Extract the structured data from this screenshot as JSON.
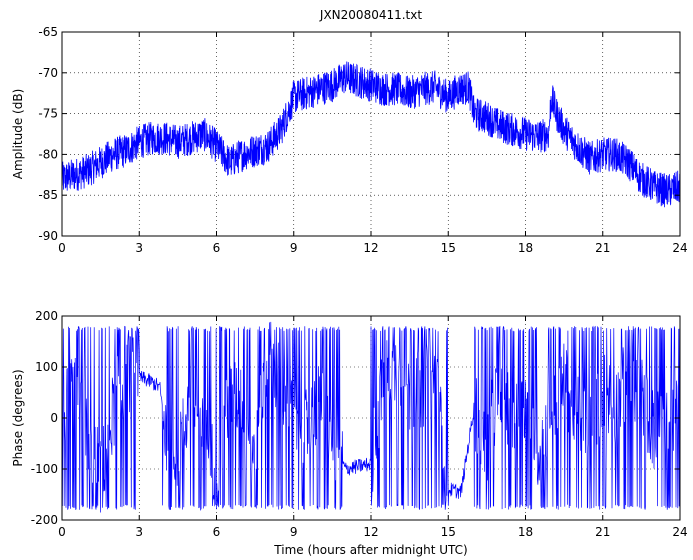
{
  "title": "JXN20080411.txt",
  "chart_data": [
    {
      "type": "line",
      "title": "JXN20080411.txt",
      "xlabel": "",
      "ylabel": "Amplitude (dB)",
      "xlim": [
        0,
        24
      ],
      "ylim": [
        -90,
        -65
      ],
      "xticks": [
        0,
        3,
        6,
        9,
        12,
        15,
        18,
        21,
        24
      ],
      "yticks": [
        -90,
        -85,
        -80,
        -75,
        -70,
        -65
      ],
      "grid": true,
      "line_color": "#0000ff",
      "series": [
        {
          "x": [
            0,
            0.5,
            1,
            1.5,
            2,
            2.5,
            3,
            3.5,
            4,
            4.5,
            5,
            5.5,
            6,
            6.5,
            7,
            7.5,
            8,
            8.5,
            9,
            9.5,
            10,
            10.5,
            11,
            11.5,
            12,
            12.5,
            13,
            13.5,
            14,
            14.5,
            15,
            15.4,
            15.8,
            16,
            16.5,
            17,
            17.5,
            18,
            18.5,
            18.9,
            19,
            19.2,
            19.5,
            20,
            20.5,
            21,
            21.5,
            22,
            22.5,
            23,
            23.5,
            24
          ],
          "y": [
            -83,
            -82.5,
            -82,
            -81,
            -80,
            -79.5,
            -78.5,
            -78,
            -78,
            -78.5,
            -78,
            -77.5,
            -79,
            -81,
            -80,
            -79.5,
            -79,
            -77,
            -73,
            -72.5,
            -72,
            -71.5,
            -70.5,
            -71,
            -71.5,
            -72,
            -72,
            -72.5,
            -72,
            -71.8,
            -73,
            -72,
            -71.8,
            -75,
            -75.5,
            -76.5,
            -77,
            -77.5,
            -77.8,
            -77.5,
            -73,
            -75,
            -77,
            -79,
            -80.5,
            -80,
            -80,
            -81,
            -83,
            -84,
            -84.5,
            -84
          ]
        }
      ]
    },
    {
      "type": "line",
      "title": "",
      "xlabel": "Time (hours after midnight UTC)",
      "ylabel": "Phase (degrees)",
      "xlim": [
        0,
        24
      ],
      "ylim": [
        -200,
        200
      ],
      "xticks": [
        0,
        3,
        6,
        9,
        12,
        15,
        18,
        21,
        24
      ],
      "yticks": [
        -200,
        -100,
        0,
        100,
        200
      ],
      "grid": true,
      "line_color": "#0000ff",
      "series": [
        {
          "x": [
            0,
            0.5,
            1,
            1.5,
            2,
            2.5,
            3,
            3.5,
            3.8,
            4,
            4.5,
            5,
            5.5,
            6,
            6.5,
            7,
            7.5,
            8,
            8.5,
            9,
            9.5,
            10,
            10.5,
            11,
            11.5,
            12,
            12.5,
            13,
            13.5,
            14,
            14.5,
            15,
            15.5,
            16,
            16.5,
            17,
            17.5,
            18,
            18.5,
            19,
            19.5,
            20,
            20.5,
            21,
            21.5,
            22,
            22.5,
            23,
            23.5,
            24
          ],
          "y": [
            0,
            50,
            -20,
            -120,
            20,
            90,
            80,
            70,
            60,
            -20,
            -60,
            40,
            -40,
            -100,
            30,
            40,
            -90,
            130,
            60,
            10,
            -20,
            30,
            -40,
            -100,
            -95,
            -90,
            80,
            100,
            40,
            60,
            80,
            -140,
            -145,
            20,
            -60,
            80,
            -20,
            30,
            -60,
            20,
            70,
            10,
            -20,
            60,
            20,
            90,
            50,
            -30,
            0,
            20
          ]
        }
      ]
    }
  ]
}
